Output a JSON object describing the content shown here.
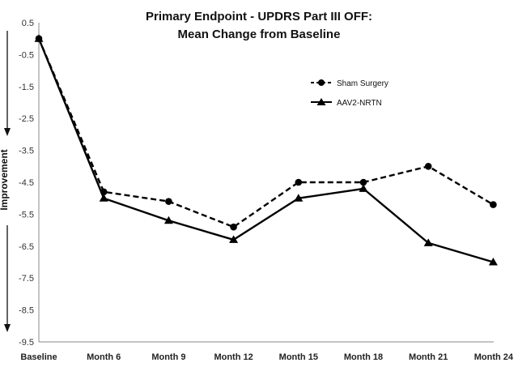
{
  "chart_data": {
    "type": "line",
    "title": [
      "Primary Endpoint - UPDRS Part III OFF:",
      "Mean Change from Baseline"
    ],
    "xlabel": "",
    "ylabel": "Improvement",
    "categories": [
      "Baseline",
      "Month 6",
      "Month 9",
      "Month 12",
      "Month 15",
      "Month 18",
      "Month 21",
      "Month 24"
    ],
    "ylim": [
      -9.5,
      0.5
    ],
    "yticks": [
      "0.5",
      "-0.5",
      "-1.5",
      "-2.5",
      "-3.5",
      "-4.5",
      "-5.5",
      "-6.5",
      "-7.5",
      "-8.5",
      "-9.5"
    ],
    "series": [
      {
        "name": "Sham Surgery",
        "values": [
          0,
          -4.8,
          -5.1,
          -5.9,
          -4.5,
          -4.5,
          -4.0,
          -5.2
        ],
        "style": "dashed",
        "marker": "circle",
        "color": "#000000"
      },
      {
        "name": "AAV2-NRTN",
        "values": [
          0,
          -5.0,
          -5.7,
          -6.3,
          -5.0,
          -4.7,
          -6.4,
          -7.0
        ],
        "style": "solid",
        "marker": "triangle",
        "color": "#000000"
      }
    ],
    "grid": false,
    "legend_position": "top-right"
  }
}
